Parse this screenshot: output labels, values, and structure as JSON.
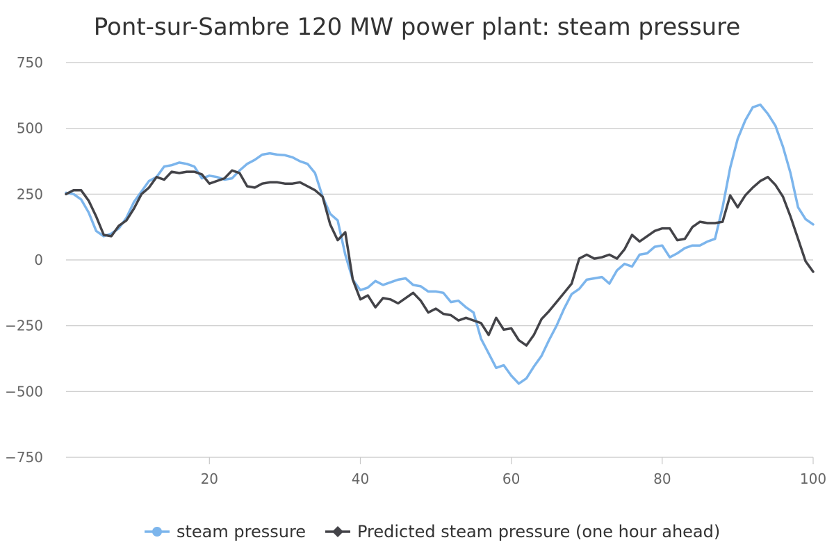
{
  "chart_data": {
    "type": "line",
    "title": "Pont-sur-Sambre 120 MW power plant: steam pressure",
    "xlabel": "",
    "ylabel": "",
    "xlim": [
      1,
      100
    ],
    "ylim": [
      -750,
      750
    ],
    "x_ticks": [
      20,
      40,
      60,
      80,
      100
    ],
    "y_ticks": [
      750,
      500,
      250,
      0,
      -250,
      -500,
      -750
    ],
    "y_tick_labels": [
      "750",
      "500",
      "250",
      "0",
      "−250",
      "−500",
      "−750"
    ],
    "grid": true,
    "legend_position": "bottom",
    "series": [
      {
        "name": "steam pressure",
        "color": "#7cb5ec",
        "marker": "circle",
        "values": [
          255,
          250,
          230,
          180,
          110,
          90,
          100,
          120,
          160,
          220,
          260,
          300,
          315,
          355,
          360,
          370,
          365,
          355,
          310,
          320,
          315,
          305,
          310,
          340,
          365,
          380,
          400,
          405,
          400,
          398,
          390,
          375,
          365,
          330,
          240,
          175,
          150,
          20,
          -75,
          -115,
          -105,
          -80,
          -95,
          -85,
          -75,
          -70,
          -95,
          -100,
          -120,
          -120,
          -125,
          -160,
          -155,
          -180,
          -200,
          -300,
          -355,
          -410,
          -400,
          -440,
          -470,
          -450,
          -405,
          -365,
          -305,
          -250,
          -185,
          -130,
          -110,
          -75,
          -70,
          -65,
          -90,
          -40,
          -15,
          -25,
          20,
          25,
          50,
          55,
          10,
          25,
          45,
          55,
          55,
          70,
          80,
          200,
          350,
          460,
          530,
          580,
          590,
          555,
          510,
          430,
          330,
          200,
          155,
          135
        ]
      },
      {
        "name": "Predicted steam pressure (one hour ahead)",
        "color": "#434348",
        "marker": "diamond",
        "values": [
          250,
          265,
          265,
          225,
          165,
          95,
          90,
          130,
          150,
          195,
          250,
          275,
          315,
          305,
          335,
          330,
          335,
          335,
          325,
          290,
          300,
          310,
          340,
          330,
          280,
          275,
          290,
          295,
          295,
          290,
          290,
          295,
          280,
          265,
          240,
          135,
          75,
          105,
          -75,
          -150,
          -135,
          -180,
          -145,
          -150,
          -165,
          -145,
          -125,
          -155,
          -200,
          -185,
          -205,
          -210,
          -230,
          -220,
          -230,
          -240,
          -285,
          -220,
          -265,
          -260,
          -305,
          -325,
          -285,
          -225,
          -195,
          -160,
          -125,
          -90,
          5,
          20,
          5,
          10,
          20,
          5,
          40,
          95,
          70,
          90,
          110,
          120,
          120,
          75,
          80,
          125,
          145,
          140,
          140,
          145,
          245,
          200,
          245,
          275,
          300,
          315,
          285,
          240,
          165,
          80,
          -5,
          -45
        ]
      }
    ]
  }
}
